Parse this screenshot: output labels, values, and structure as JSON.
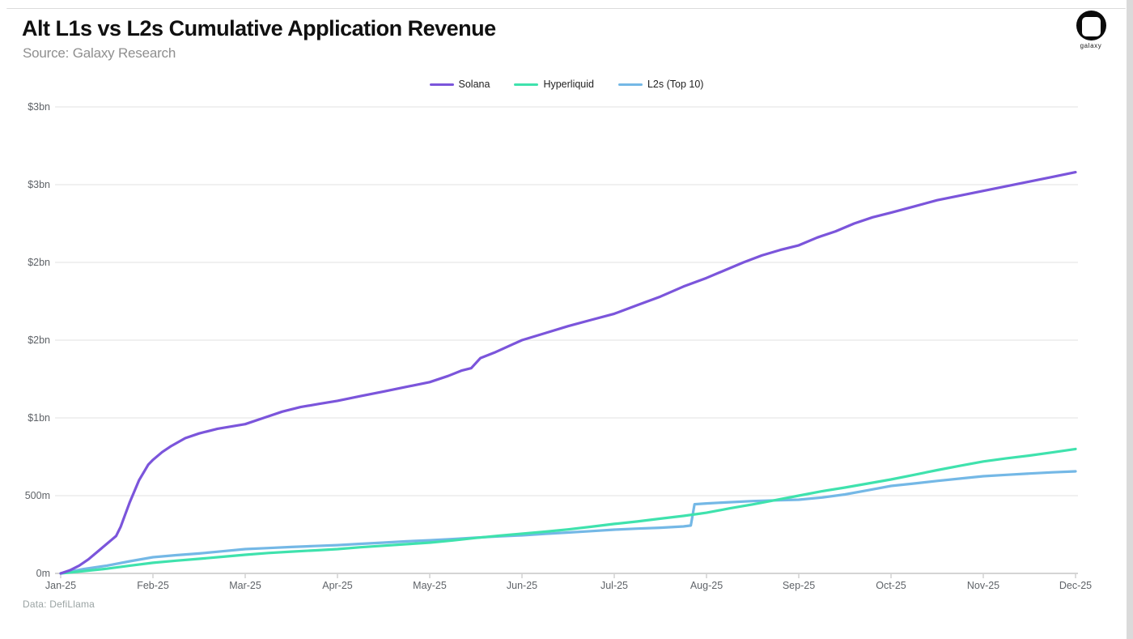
{
  "header": {
    "title": "Alt L1s vs L2s Cumulative Application Revenue",
    "source": "Source: Galaxy Research"
  },
  "logo": {
    "word": "galaxy"
  },
  "footer": {
    "text": "Data: DefiLlama"
  },
  "colors": {
    "solana": "#7B55DB",
    "hyperliquid": "#3FE2AD",
    "l2s": "#74B8E6",
    "gridline": "#e7e7e7",
    "axis_line": "#c6c6c6",
    "tick_label": "#5f6368"
  },
  "chart_data": {
    "type": "line",
    "title": "Alt L1s vs L2s Cumulative Application Revenue",
    "unit": "USD (bn), cumulative",
    "grid": "horizontal",
    "legend_position": "top-center",
    "xlabel": "",
    "ylabel": "",
    "ylim": [
      0,
      3
    ],
    "x_tick_labels": [
      "Jan-25",
      "Feb-25",
      "Mar-25",
      "Apr-25",
      "May-25",
      "Jun-25",
      "Jul-25",
      "Aug-25",
      "Sep-25",
      "Oct-25",
      "Nov-25",
      "Dec-25"
    ],
    "y_ticks": [
      {
        "value": 0.0,
        "label": "0m"
      },
      {
        "value": 0.5,
        "label": "500m"
      },
      {
        "value": 1.0,
        "label": "$1bn"
      },
      {
        "value": 1.5,
        "label": "$2bn"
      },
      {
        "value": 2.0,
        "label": "$2bn"
      },
      {
        "value": 2.5,
        "label": "$3bn"
      },
      {
        "value": 3.0,
        "label": "$3bn"
      }
    ],
    "series": [
      {
        "name": "L2s (Top 10)",
        "color": "#74B8E6",
        "points": [
          [
            0,
            0
          ],
          [
            0.25,
            0.028
          ],
          [
            0.5,
            0.05
          ],
          [
            0.75,
            0.078
          ],
          [
            1,
            0.104
          ],
          [
            1.25,
            0.117
          ],
          [
            1.5,
            0.128
          ],
          [
            1.75,
            0.142
          ],
          [
            2,
            0.156
          ],
          [
            2.25,
            0.163
          ],
          [
            2.5,
            0.17
          ],
          [
            2.75,
            0.176
          ],
          [
            3,
            0.182
          ],
          [
            3.25,
            0.19
          ],
          [
            3.5,
            0.198
          ],
          [
            3.75,
            0.206
          ],
          [
            4,
            0.213
          ],
          [
            4.25,
            0.221
          ],
          [
            4.5,
            0.23
          ],
          [
            4.75,
            0.238
          ],
          [
            5,
            0.245
          ],
          [
            5.25,
            0.254
          ],
          [
            5.5,
            0.263
          ],
          [
            5.75,
            0.272
          ],
          [
            6,
            0.281
          ],
          [
            6.25,
            0.288
          ],
          [
            6.5,
            0.294
          ],
          [
            6.75,
            0.302
          ],
          [
            6.83,
            0.308
          ],
          [
            6.87,
            0.445
          ],
          [
            7,
            0.45
          ],
          [
            7.25,
            0.458
          ],
          [
            7.5,
            0.465
          ],
          [
            7.75,
            0.47
          ],
          [
            8,
            0.474
          ],
          [
            8.25,
            0.488
          ],
          [
            8.5,
            0.508
          ],
          [
            8.75,
            0.535
          ],
          [
            9,
            0.5625
          ],
          [
            9.25,
            0.578
          ],
          [
            9.5,
            0.595
          ],
          [
            9.75,
            0.61
          ],
          [
            10,
            0.625
          ],
          [
            10.25,
            0.634
          ],
          [
            10.5,
            0.642
          ],
          [
            10.75,
            0.65
          ],
          [
            11,
            0.656
          ]
        ]
      },
      {
        "name": "Hyperliquid",
        "color": "#3FE2AD",
        "points": [
          [
            0,
            0
          ],
          [
            0.25,
            0.015
          ],
          [
            0.5,
            0.03
          ],
          [
            0.75,
            0.05
          ],
          [
            1,
            0.068
          ],
          [
            1.25,
            0.082
          ],
          [
            1.5,
            0.094
          ],
          [
            1.75,
            0.107
          ],
          [
            2,
            0.12
          ],
          [
            2.25,
            0.131
          ],
          [
            2.5,
            0.14
          ],
          [
            2.75,
            0.148
          ],
          [
            3,
            0.156
          ],
          [
            3.25,
            0.168
          ],
          [
            3.5,
            0.178
          ],
          [
            3.75,
            0.188
          ],
          [
            4,
            0.198
          ],
          [
            4.25,
            0.212
          ],
          [
            4.5,
            0.228
          ],
          [
            4.75,
            0.242
          ],
          [
            5,
            0.255
          ],
          [
            5.25,
            0.268
          ],
          [
            5.5,
            0.283
          ],
          [
            5.75,
            0.3
          ],
          [
            6,
            0.318
          ],
          [
            6.25,
            0.334
          ],
          [
            6.5,
            0.352
          ],
          [
            6.75,
            0.37
          ],
          [
            7,
            0.39
          ],
          [
            7.25,
            0.418
          ],
          [
            7.5,
            0.444
          ],
          [
            7.75,
            0.472
          ],
          [
            8,
            0.5
          ],
          [
            8.25,
            0.528
          ],
          [
            8.5,
            0.552
          ],
          [
            8.75,
            0.578
          ],
          [
            9,
            0.604
          ],
          [
            9.25,
            0.634
          ],
          [
            9.5,
            0.664
          ],
          [
            9.75,
            0.692
          ],
          [
            10,
            0.72
          ],
          [
            10.25,
            0.74
          ],
          [
            10.5,
            0.758
          ],
          [
            10.75,
            0.778
          ],
          [
            11,
            0.8
          ]
        ]
      },
      {
        "name": "Solana",
        "color": "#7B55DB",
        "points": [
          [
            0,
            0
          ],
          [
            0.1,
            0.02
          ],
          [
            0.2,
            0.05
          ],
          [
            0.3,
            0.09
          ],
          [
            0.4,
            0.14
          ],
          [
            0.5,
            0.19
          ],
          [
            0.55,
            0.215
          ],
          [
            0.6,
            0.24
          ],
          [
            0.65,
            0.3
          ],
          [
            0.7,
            0.38
          ],
          [
            0.75,
            0.46
          ],
          [
            0.8,
            0.53
          ],
          [
            0.85,
            0.6
          ],
          [
            0.9,
            0.65
          ],
          [
            0.95,
            0.7
          ],
          [
            1,
            0.73
          ],
          [
            1.1,
            0.78
          ],
          [
            1.2,
            0.82
          ],
          [
            1.35,
            0.87
          ],
          [
            1.5,
            0.9
          ],
          [
            1.7,
            0.93
          ],
          [
            1.85,
            0.945
          ],
          [
            2,
            0.96
          ],
          [
            2.2,
            1
          ],
          [
            2.4,
            1.04
          ],
          [
            2.6,
            1.07
          ],
          [
            2.8,
            1.09
          ],
          [
            3,
            1.11
          ],
          [
            3.25,
            1.14
          ],
          [
            3.5,
            1.17
          ],
          [
            3.75,
            1.2
          ],
          [
            4,
            1.23
          ],
          [
            4.2,
            1.27
          ],
          [
            4.35,
            1.305
          ],
          [
            4.45,
            1.32
          ],
          [
            4.55,
            1.385
          ],
          [
            4.7,
            1.42
          ],
          [
            4.85,
            1.46
          ],
          [
            5,
            1.5
          ],
          [
            5.25,
            1.545
          ],
          [
            5.5,
            1.59
          ],
          [
            5.75,
            1.63
          ],
          [
            6,
            1.67
          ],
          [
            6.25,
            1.725
          ],
          [
            6.5,
            1.78
          ],
          [
            6.75,
            1.845
          ],
          [
            7,
            1.9
          ],
          [
            7.2,
            1.95
          ],
          [
            7.4,
            2
          ],
          [
            7.6,
            2.045
          ],
          [
            7.8,
            2.08
          ],
          [
            8,
            2.11
          ],
          [
            8.2,
            2.16
          ],
          [
            8.4,
            2.2
          ],
          [
            8.6,
            2.25
          ],
          [
            8.8,
            2.29
          ],
          [
            9,
            2.32
          ],
          [
            9.25,
            2.36
          ],
          [
            9.5,
            2.4
          ],
          [
            9.75,
            2.43
          ],
          [
            10,
            2.46
          ],
          [
            10.25,
            2.49
          ],
          [
            10.5,
            2.52
          ],
          [
            10.75,
            2.55
          ],
          [
            11,
            2.58
          ]
        ]
      }
    ]
  }
}
